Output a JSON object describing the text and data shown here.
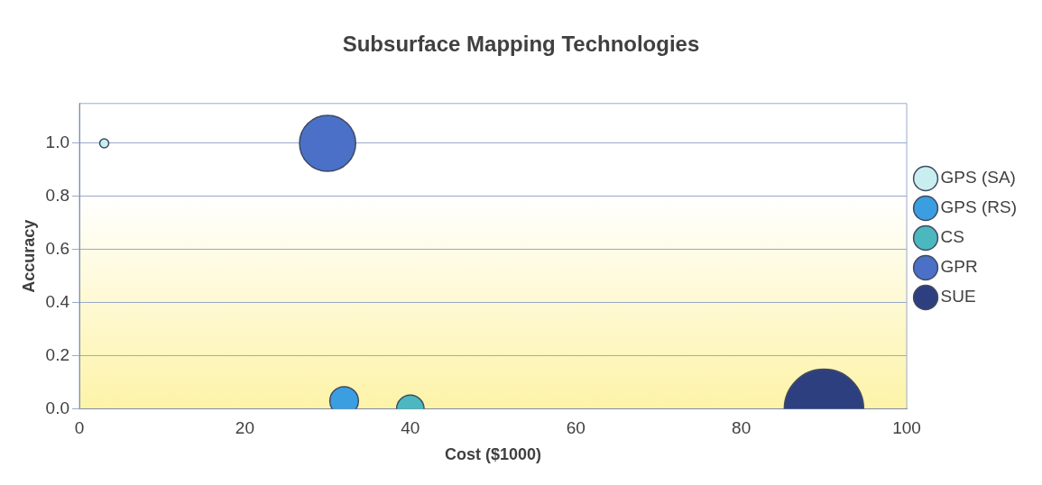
{
  "chart_data": {
    "type": "bubble",
    "title": "Subsurface Mapping Technologies",
    "xlabel": "Cost ($1000)",
    "ylabel": "Accuracy",
    "series": [
      {
        "name": "GPS (SA)",
        "color": "#c8eef0",
        "x": [
          3
        ],
        "values": [
          1.0
        ],
        "sizes": [
          0.013
        ]
      },
      {
        "name": "GPS (RS)",
        "color": "#3a9ee0",
        "x": [
          32
        ],
        "values": [
          0.03
        ],
        "sizes": [
          0.13
        ]
      },
      {
        "name": "CS",
        "color": "#4bb8c0",
        "x": [
          40
        ],
        "values": [
          0
        ],
        "sizes": [
          0.12
        ]
      },
      {
        "name": "GPR",
        "color": "#4a70c8",
        "x": [
          30
        ],
        "values": [
          1.0
        ],
        "sizes": [
          0.5
        ]
      },
      {
        "name": "SUE",
        "color": "#2e3f80",
        "x": [
          90
        ],
        "values": [
          0
        ],
        "sizes": [
          1
        ]
      }
    ],
    "xlim": [
      0,
      100
    ],
    "xticks": [
      0,
      20,
      40,
      60,
      80,
      100
    ],
    "ylim": [
      0,
      1.15
    ],
    "yticks": [
      {
        "value": 0,
        "label": "0.0"
      },
      {
        "value": 0.2,
        "label": "0.2"
      },
      {
        "value": 0.4,
        "label": "0.4"
      },
      {
        "value": 0.6,
        "label": "0.6"
      },
      {
        "value": 0.8,
        "label": "0.8"
      },
      {
        "value": 1,
        "label": "1.0"
      }
    ],
    "grid": "y",
    "legend": "right"
  }
}
